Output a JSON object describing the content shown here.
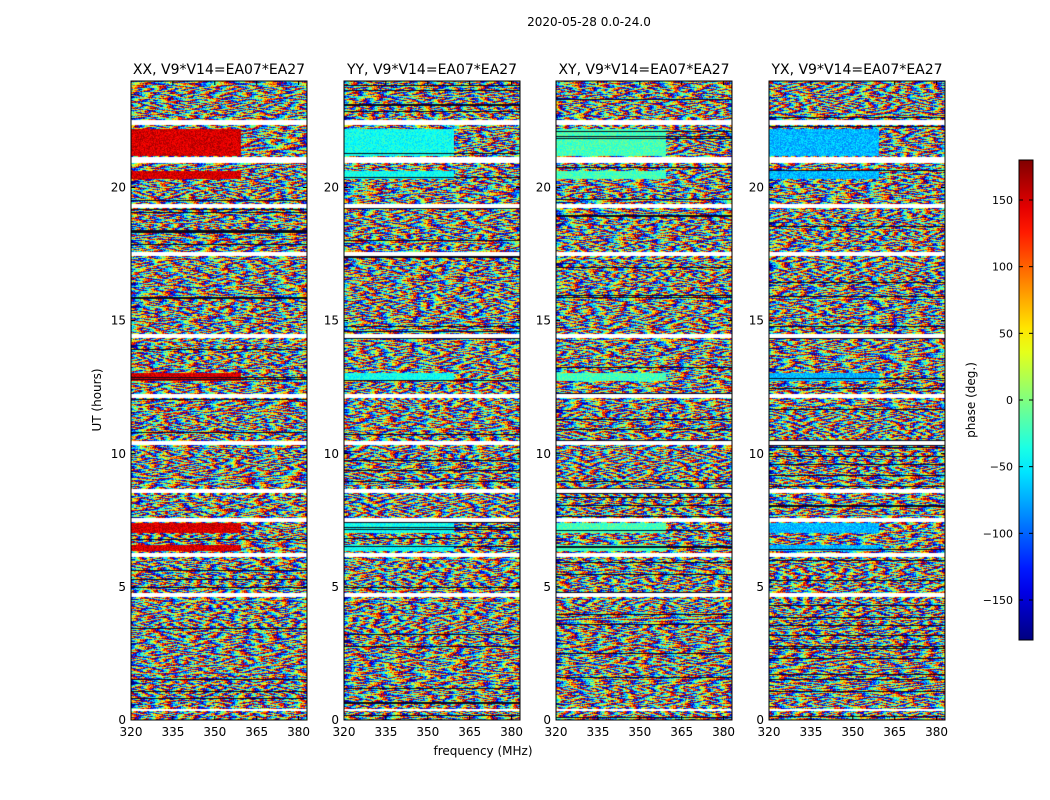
{
  "figure": {
    "suptitle": "2020-05-28 0.0-24.0",
    "xlabel": "frequency (MHz)",
    "ylabel": "UT (hours)",
    "colorbar_label": "phase (deg.)"
  },
  "chart_data": {
    "type": "heatmap",
    "panels": [
      {
        "title": "XX, V9*V14=EA07*EA27",
        "bias_phase": 150
      },
      {
        "title": "YY, V9*V14=EA07*EA27",
        "bias_phase": -40
      },
      {
        "title": "XY, V9*V14=EA07*EA27",
        "bias_phase": -20
      },
      {
        "title": "YX, V9*V14=EA07*EA27",
        "bias_phase": -70
      }
    ],
    "x_range": [
      320,
      383
    ],
    "x_ticks": [
      320,
      335,
      350,
      365,
      380
    ],
    "x_tick_labels": [
      "320",
      "335",
      "350",
      "365",
      "380"
    ],
    "y_range": [
      0,
      24
    ],
    "y_ticks": [
      0,
      5,
      10,
      15,
      20
    ],
    "y_tick_labels": [
      "0",
      "5",
      "10",
      "15",
      "20"
    ],
    "colorbar_range": [
      -180,
      180
    ],
    "colorbar_ticks": [
      150,
      100,
      50,
      0,
      -50,
      -100,
      -150
    ],
    "colorbar_tick_labels": [
      "150",
      "100",
      "50",
      "0",
      "−50",
      "−100",
      "−150"
    ],
    "colormap": "jet",
    "flagged_ut_bands": [
      [
        22.35,
        22.55
      ],
      [
        20.95,
        21.15
      ],
      [
        19.25,
        19.4
      ],
      [
        17.45,
        17.6
      ],
      [
        14.35,
        14.5
      ],
      [
        12.1,
        12.25
      ],
      [
        10.35,
        10.5
      ],
      [
        8.55,
        8.7
      ],
      [
        7.45,
        7.6
      ],
      [
        6.15,
        6.3
      ],
      [
        4.65,
        4.8
      ],
      [
        0.35,
        0.45
      ]
    ],
    "coherent_ut_bands": [
      [
        21.2,
        22.2
      ],
      [
        20.35,
        20.65
      ],
      [
        12.75,
        13.05
      ],
      [
        7.05,
        7.4
      ],
      [
        6.35,
        6.6
      ]
    ]
  }
}
